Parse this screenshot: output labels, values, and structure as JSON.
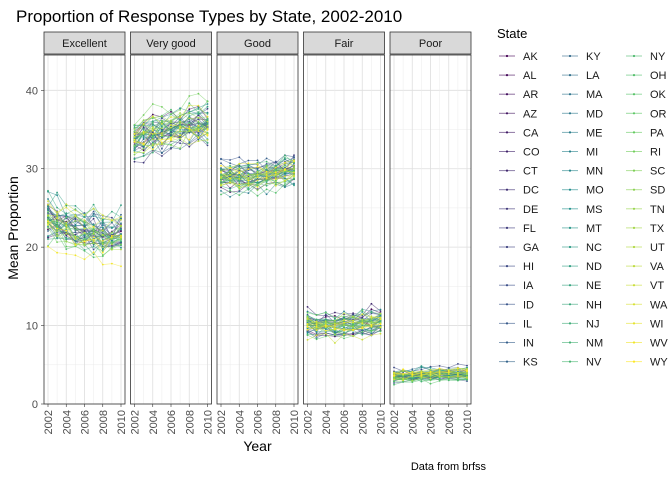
{
  "chart_data": {
    "type": "line",
    "title": "Proportion of Response Types by State, 2002-2010",
    "xlabel": "Year",
    "ylabel": "Mean Proportion",
    "caption": "Data from brfss",
    "legend_title": "State",
    "legend_placement": "right",
    "grid": true,
    "xlim": [
      2002,
      2010
    ],
    "ylim": [
      0,
      44.5
    ],
    "x_ticks": [
      "2002",
      "2004",
      "2006",
      "2008",
      "2010"
    ],
    "y_ticks": [
      "0",
      "10",
      "20",
      "30",
      "40"
    ],
    "x": [
      2002,
      2003,
      2004,
      2005,
      2006,
      2007,
      2008,
      2009,
      2010
    ],
    "facets": [
      {
        "label": "Excellent",
        "mean": [
          23.5,
          22.8,
          22.5,
          22.0,
          21.6,
          21.6,
          21.4,
          21.2,
          21.5
        ],
        "spread": 3.6
      },
      {
        "label": "Very good",
        "mean": [
          33.5,
          34.0,
          34.3,
          34.6,
          34.8,
          35.0,
          35.2,
          35.4,
          35.4
        ],
        "spread": 3.4
      },
      {
        "label": "Good",
        "mean": [
          29.0,
          28.9,
          28.9,
          29.0,
          29.1,
          29.3,
          29.4,
          29.6,
          29.8
        ],
        "spread": 2.5
      },
      {
        "label": "Fair",
        "mean": [
          10.4,
          10.0,
          10.2,
          10.0,
          10.1,
          10.2,
          10.3,
          10.4,
          10.6
        ],
        "spread": 1.9
      },
      {
        "label": "Poor",
        "mean": [
          3.6,
          3.6,
          3.7,
          3.8,
          3.8,
          3.9,
          3.9,
          3.9,
          3.9
        ],
        "spread": 1.1
      }
    ],
    "states": [
      "AK",
      "AL",
      "AR",
      "AZ",
      "CA",
      "CO",
      "CT",
      "DC",
      "DE",
      "FL",
      "GA",
      "HI",
      "IA",
      "ID",
      "IL",
      "IN",
      "KS",
      "KY",
      "LA",
      "MA",
      "MD",
      "ME",
      "MI",
      "MN",
      "MO",
      "MS",
      "MT",
      "NC",
      "ND",
      "NE",
      "NH",
      "NJ",
      "NM",
      "NV",
      "NY",
      "OH",
      "OK",
      "OR",
      "PA",
      "RI",
      "SC",
      "SD",
      "TN",
      "TX",
      "UT",
      "VA",
      "VT",
      "WA",
      "WI",
      "WV",
      "WY"
    ]
  }
}
